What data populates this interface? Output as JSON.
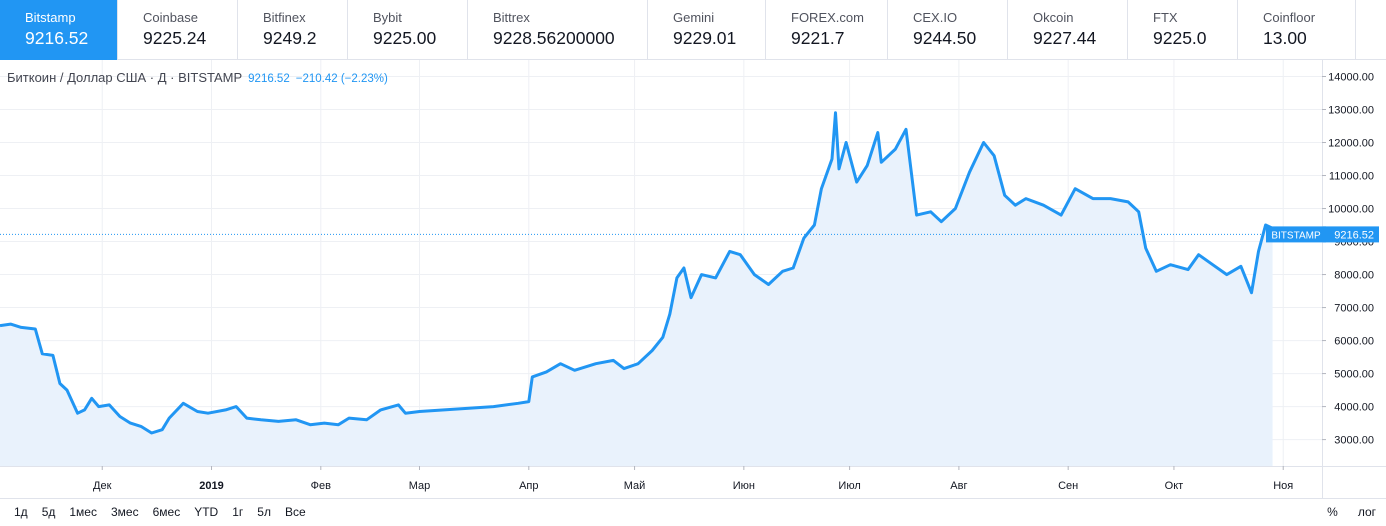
{
  "exchanges": [
    {
      "name": "Bitstamp",
      "price": "9216.52",
      "active": true
    },
    {
      "name": "Coinbase",
      "price": "9225.24",
      "active": false
    },
    {
      "name": "Bitfinex",
      "price": "9249.2",
      "active": false
    },
    {
      "name": "Bybit",
      "price": "9225.00",
      "active": false
    },
    {
      "name": "Bittrex",
      "price": "9228.56200000",
      "active": false
    },
    {
      "name": "Gemini",
      "price": "9229.01",
      "active": false
    },
    {
      "name": "FOREX.com",
      "price": "9221.7",
      "active": false
    },
    {
      "name": "CEX.IO",
      "price": "9244.50",
      "active": false
    },
    {
      "name": "Okcoin",
      "price": "9227.44",
      "active": false
    },
    {
      "name": "FTX",
      "price": "9225.0",
      "active": false
    },
    {
      "name": "Coinfloor",
      "price": "13.00",
      "active": false
    }
  ],
  "legend": {
    "symbol": "Биткоин / Доллар США · Д · BITSTAMP",
    "last": "9216.52",
    "change": "−210.42 (−2.23%)"
  },
  "range_buttons": [
    "1д",
    "5д",
    "1мес",
    "3мес",
    "6мес",
    "YTD",
    "1г",
    "5л",
    "Все"
  ],
  "scale_buttons": [
    "%",
    "лог"
  ],
  "colors": {
    "line": "#2196f3",
    "fill": "#e9f2fc",
    "active_tab": "#2196f3",
    "dotted_price_line": "#2196f3",
    "grid": "#eef0f4"
  },
  "chart_data": {
    "type": "area",
    "title": "Биткоин / Доллар США · Д · BITSTAMP",
    "price_label": {
      "exchange": "BITSTAMP",
      "value": "9216.52",
      "y": 9216.52
    },
    "ylim": [
      2200,
      14500
    ],
    "yticks": [
      {
        "label": "14000.00",
        "value": 14000
      },
      {
        "label": "13000.00",
        "value": 13000
      },
      {
        "label": "12000.00",
        "value": 12000
      },
      {
        "label": "11000.00",
        "value": 11000
      },
      {
        "label": "10000.00",
        "value": 10000
      },
      {
        "label": "9000.00",
        "value": 9000
      },
      {
        "label": "8000.00",
        "value": 8000
      },
      {
        "label": "7000.00",
        "value": 7000
      },
      {
        "label": "6000.00",
        "value": 6000
      },
      {
        "label": "5000.00",
        "value": 5000
      },
      {
        "label": "4000.00",
        "value": 4000
      },
      {
        "label": "3000.00",
        "value": 3000
      }
    ],
    "xlim": [
      "2018-11-02",
      "2019-11-12"
    ],
    "xticks": [
      {
        "label": "Дек",
        "date": "2018-12-01"
      },
      {
        "label": "2019",
        "date": "2019-01-01",
        "bold": true
      },
      {
        "label": "Фев",
        "date": "2019-02-01"
      },
      {
        "label": "Мар",
        "date": "2019-03-01"
      },
      {
        "label": "Апр",
        "date": "2019-04-01"
      },
      {
        "label": "Май",
        "date": "2019-05-01"
      },
      {
        "label": "Июн",
        "date": "2019-06-01"
      },
      {
        "label": "Июл",
        "date": "2019-07-01"
      },
      {
        "label": "Авг",
        "date": "2019-08-01"
      },
      {
        "label": "Сен",
        "date": "2019-09-01"
      },
      {
        "label": "Окт",
        "date": "2019-10-01"
      },
      {
        "label": "Ноя",
        "date": "2019-11-01"
      }
    ],
    "series": [
      {
        "points": [
          [
            "2018-11-02",
            6450
          ],
          [
            "2018-11-05",
            6500
          ],
          [
            "2018-11-08",
            6400
          ],
          [
            "2018-11-12",
            6350
          ],
          [
            "2018-11-14",
            5600
          ],
          [
            "2018-11-17",
            5550
          ],
          [
            "2018-11-19",
            4700
          ],
          [
            "2018-11-21",
            4500
          ],
          [
            "2018-11-24",
            3800
          ],
          [
            "2018-11-26",
            3900
          ],
          [
            "2018-11-28",
            4250
          ],
          [
            "2018-11-30",
            4000
          ],
          [
            "2018-12-03",
            4050
          ],
          [
            "2018-12-06",
            3700
          ],
          [
            "2018-12-09",
            3500
          ],
          [
            "2018-12-12",
            3400
          ],
          [
            "2018-12-15",
            3200
          ],
          [
            "2018-12-18",
            3300
          ],
          [
            "2018-12-20",
            3650
          ],
          [
            "2018-12-24",
            4100
          ],
          [
            "2018-12-28",
            3850
          ],
          [
            "2018-12-31",
            3800
          ],
          [
            "2019-01-05",
            3900
          ],
          [
            "2019-01-08",
            4000
          ],
          [
            "2019-01-11",
            3650
          ],
          [
            "2019-01-15",
            3600
          ],
          [
            "2019-01-20",
            3550
          ],
          [
            "2019-01-25",
            3600
          ],
          [
            "2019-01-29",
            3450
          ],
          [
            "2019-02-02",
            3500
          ],
          [
            "2019-02-06",
            3450
          ],
          [
            "2019-02-09",
            3650
          ],
          [
            "2019-02-14",
            3600
          ],
          [
            "2019-02-18",
            3900
          ],
          [
            "2019-02-23",
            4050
          ],
          [
            "2019-02-25",
            3800
          ],
          [
            "2019-03-01",
            3850
          ],
          [
            "2019-03-08",
            3900
          ],
          [
            "2019-03-15",
            3950
          ],
          [
            "2019-03-22",
            4000
          ],
          [
            "2019-03-29",
            4100
          ],
          [
            "2019-04-01",
            4150
          ],
          [
            "2019-04-02",
            4900
          ],
          [
            "2019-04-06",
            5050
          ],
          [
            "2019-04-10",
            5300
          ],
          [
            "2019-04-14",
            5100
          ],
          [
            "2019-04-20",
            5300
          ],
          [
            "2019-04-25",
            5400
          ],
          [
            "2019-04-28",
            5150
          ],
          [
            "2019-05-02",
            5300
          ],
          [
            "2019-05-06",
            5700
          ],
          [
            "2019-05-09",
            6100
          ],
          [
            "2019-05-11",
            6800
          ],
          [
            "2019-05-13",
            7900
          ],
          [
            "2019-05-15",
            8200
          ],
          [
            "2019-05-17",
            7300
          ],
          [
            "2019-05-20",
            8000
          ],
          [
            "2019-05-24",
            7900
          ],
          [
            "2019-05-28",
            8700
          ],
          [
            "2019-05-31",
            8600
          ],
          [
            "2019-06-04",
            8000
          ],
          [
            "2019-06-08",
            7700
          ],
          [
            "2019-06-12",
            8100
          ],
          [
            "2019-06-15",
            8200
          ],
          [
            "2019-06-18",
            9100
          ],
          [
            "2019-06-21",
            9500
          ],
          [
            "2019-06-23",
            10600
          ],
          [
            "2019-06-26",
            11500
          ],
          [
            "2019-06-27",
            12900
          ],
          [
            "2019-06-28",
            11200
          ],
          [
            "2019-06-30",
            12000
          ],
          [
            "2019-07-03",
            10800
          ],
          [
            "2019-07-06",
            11300
          ],
          [
            "2019-07-09",
            12300
          ],
          [
            "2019-07-10",
            11400
          ],
          [
            "2019-07-14",
            11800
          ],
          [
            "2019-07-17",
            12400
          ],
          [
            "2019-07-20",
            9800
          ],
          [
            "2019-07-24",
            9900
          ],
          [
            "2019-07-27",
            9600
          ],
          [
            "2019-07-31",
            10000
          ],
          [
            "2019-08-04",
            11100
          ],
          [
            "2019-08-08",
            12000
          ],
          [
            "2019-08-11",
            11600
          ],
          [
            "2019-08-14",
            10400
          ],
          [
            "2019-08-17",
            10100
          ],
          [
            "2019-08-20",
            10300
          ],
          [
            "2019-08-25",
            10100
          ],
          [
            "2019-08-30",
            9800
          ],
          [
            "2019-09-03",
            10600
          ],
          [
            "2019-09-08",
            10300
          ],
          [
            "2019-09-13",
            10300
          ],
          [
            "2019-09-18",
            10200
          ],
          [
            "2019-09-21",
            9900
          ],
          [
            "2019-09-23",
            8800
          ],
          [
            "2019-09-26",
            8100
          ],
          [
            "2019-09-30",
            8300
          ],
          [
            "2019-10-05",
            8150
          ],
          [
            "2019-10-08",
            8600
          ],
          [
            "2019-10-12",
            8300
          ],
          [
            "2019-10-16",
            8000
          ],
          [
            "2019-10-20",
            8250
          ],
          [
            "2019-10-23",
            7450
          ],
          [
            "2019-10-25",
            8700
          ],
          [
            "2019-10-27",
            9500
          ],
          [
            "2019-10-29",
            9400
          ]
        ]
      }
    ]
  }
}
